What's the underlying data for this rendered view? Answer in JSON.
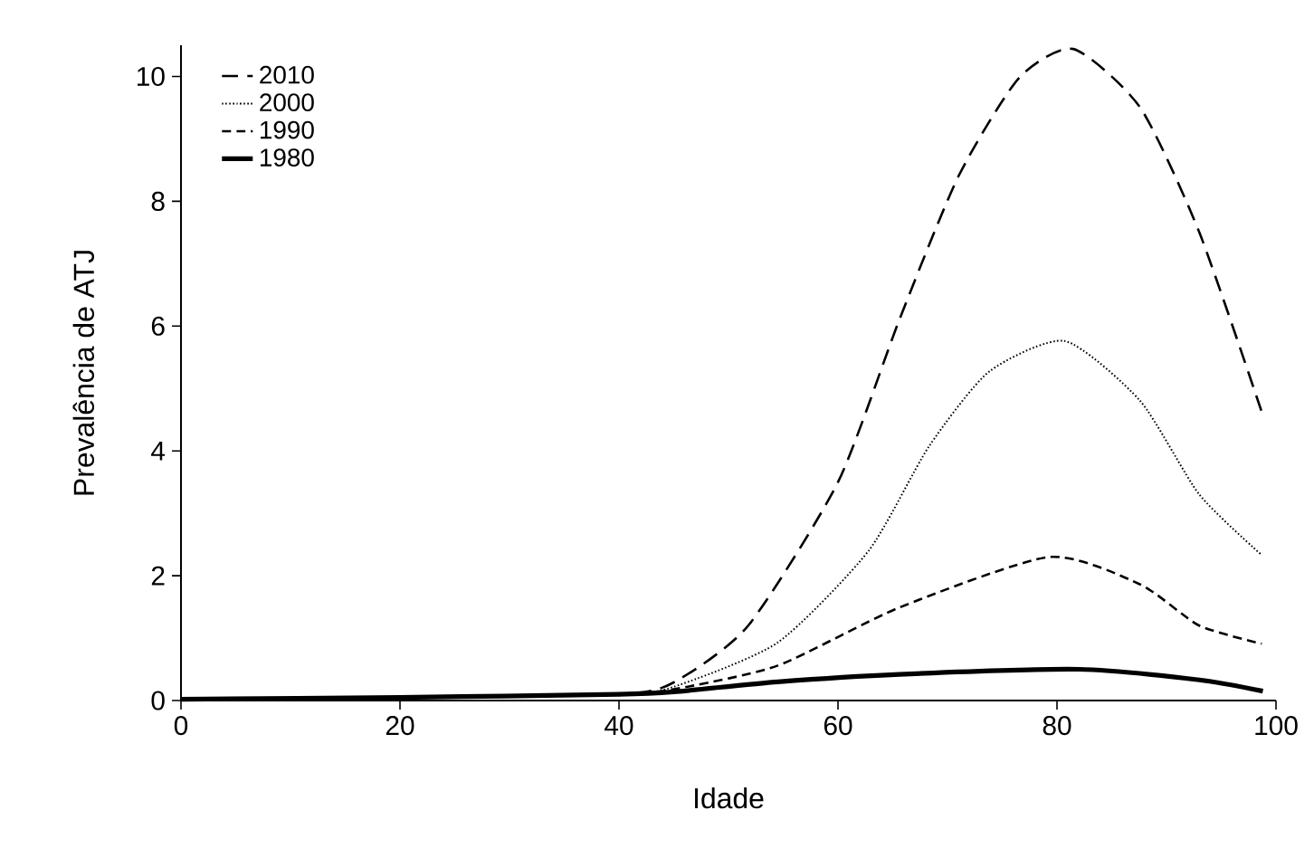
{
  "chart_data": {
    "type": "line",
    "xlabel": "Idade",
    "ylabel": "Prevalência de ATJ",
    "xlim": [
      0,
      100
    ],
    "ylim": [
      0,
      10.5
    ],
    "xticks": [
      0,
      20,
      40,
      60,
      80,
      100
    ],
    "yticks": [
      0,
      2,
      4,
      6,
      8,
      10
    ],
    "grid": false,
    "legend": "top left",
    "marker": "none",
    "series": [
      {
        "name": "2010",
        "color": "#000000",
        "line_style": "dashed",
        "x": [
          0,
          20,
          40,
          45,
          51.8,
          60,
          65.6,
          71,
          76.5,
          81.5,
          87.6,
          93,
          98.8
        ],
        "values": [
          0.02,
          0.05,
          0.1,
          0.29,
          1.2,
          3.5,
          6.1,
          8.4,
          9.97,
          10.44,
          9.5,
          7.5,
          4.57
        ]
      },
      {
        "name": "2000",
        "color": "#000000",
        "line_style": "dotted",
        "x": [
          0,
          20,
          40,
          45,
          54.5,
          62.8,
          68.3,
          73.8,
          80.7,
          87.6,
          93,
          98.7
        ],
        "values": [
          0.02,
          0.05,
          0.1,
          0.22,
          0.93,
          2.4,
          4.07,
          5.27,
          5.76,
          4.8,
          3.3,
          2.33
        ]
      },
      {
        "name": "1990",
        "color": "#000000",
        "line_style": "dashed",
        "x": [
          0,
          20,
          40,
          45,
          54.5,
          65.6,
          79.3,
          87.6,
          93,
          98.7
        ],
        "values": [
          0.02,
          0.05,
          0.1,
          0.18,
          0.56,
          1.49,
          2.3,
          1.86,
          1.2,
          0.91
        ]
      },
      {
        "name": "1980",
        "color": "#000000",
        "line_style": "solid",
        "x": [
          0,
          20,
          40,
          45,
          54.5,
          65.6,
          82,
          93,
          98.8
        ],
        "values": [
          0.02,
          0.05,
          0.1,
          0.14,
          0.3,
          0.42,
          0.5,
          0.33,
          0.15
        ]
      }
    ]
  }
}
